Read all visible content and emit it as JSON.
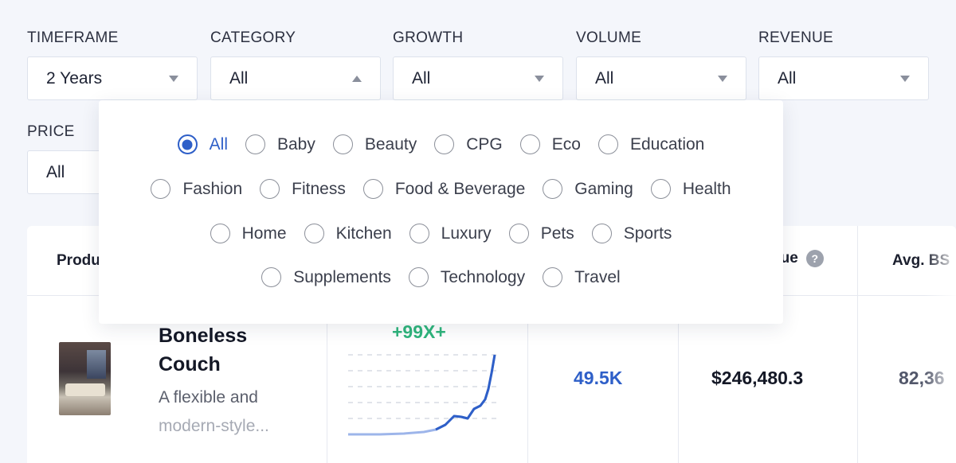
{
  "filters": {
    "timeframe": {
      "label": "TIMEFRAME",
      "value": "2 Years"
    },
    "category": {
      "label": "CATEGORY",
      "value": "All"
    },
    "growth": {
      "label": "GROWTH",
      "value": "All"
    },
    "volume": {
      "label": "VOLUME",
      "value": "All"
    },
    "revenue": {
      "label": "REVENUE",
      "value": "All"
    },
    "price": {
      "label": "PRICE",
      "value": "All"
    }
  },
  "category_dropdown": {
    "selected": "All",
    "rows": [
      [
        "All",
        "Baby",
        "Beauty",
        "CPG",
        "Eco",
        "Education"
      ],
      [
        "Fashion",
        "Fitness",
        "Food & Beverage",
        "Gaming",
        "Health"
      ],
      [
        "Home",
        "Kitchen",
        "Luxury",
        "Pets",
        "Sports"
      ],
      [
        "Supplements",
        "Technology",
        "Travel"
      ]
    ]
  },
  "table": {
    "headers": {
      "product": "Produ",
      "revenue": "nue",
      "avg_bsr": "Avg. BS"
    },
    "rows": [
      {
        "name_line1": "Boneless",
        "name_line2": "Couch",
        "desc_line1": "A flexible and",
        "desc_line2": "modern-style...",
        "growth": "+99X+",
        "volume": "49.5K",
        "revenue": "$246,480.3",
        "avg_bsr": "82,36"
      }
    ]
  },
  "colors": {
    "accent": "#2e5fc8",
    "growth_green": "#2fb57c"
  },
  "icons": {
    "dropdown_caret": "caret-down-icon",
    "dropdown_caret_open": "caret-up-icon",
    "info": "question-icon"
  }
}
